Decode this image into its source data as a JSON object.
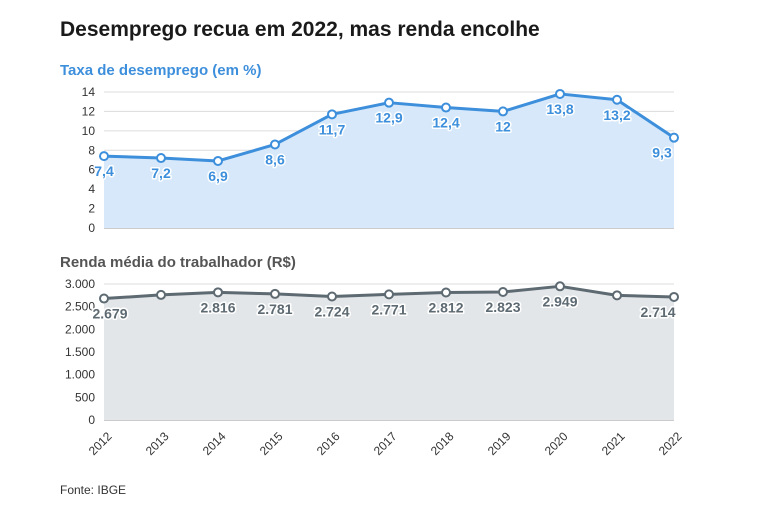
{
  "title": "Desemprego recua em 2022, mas renda encolhe",
  "source": "Fonte: IBGE",
  "colors": {
    "unemployment": "#3d8fdc",
    "unemployment_fill": "#d6e8fa",
    "income": "#5e6a72",
    "income_fill": "#e3e6e8"
  },
  "chart_data": [
    {
      "type": "area",
      "title": "Taxa de desemprego (em %)",
      "x": [
        "2012",
        "2013",
        "2014",
        "2015",
        "2016",
        "2017",
        "2018",
        "2019",
        "2020",
        "2021",
        "2022"
      ],
      "values": [
        7.4,
        7.2,
        6.9,
        8.6,
        11.7,
        12.9,
        12.4,
        12,
        13.8,
        13.2,
        9.3
      ],
      "labels": [
        "7,4",
        "7,2",
        "6,9",
        "8,6",
        "11,7",
        "12,9",
        "12,4",
        "12",
        "13,8",
        "13,2",
        "9,3"
      ],
      "yticks": [
        0,
        2,
        4,
        6,
        8,
        10,
        12,
        14
      ],
      "ytick_labels": [
        "0",
        "2",
        "4",
        "6",
        "8",
        "10",
        "12",
        "14"
      ],
      "ylim": [
        0,
        14
      ],
      "grid": true
    },
    {
      "type": "area",
      "title": "Renda média do trabalhador (R$)",
      "x": [
        "2012",
        "2013",
        "2014",
        "2015",
        "2016",
        "2017",
        "2018",
        "2019",
        "2020",
        "2021",
        "2022"
      ],
      "values": [
        2679,
        2759,
        2816,
        2781,
        2724,
        2771,
        2812,
        2823,
        2949,
        2750,
        2714
      ],
      "labels": [
        "2.679",
        "",
        "2.816",
        "2.781",
        "2.724",
        "2.771",
        "2.812",
        "2.823",
        "2.949",
        "",
        "2.714"
      ],
      "yticks": [
        0,
        500,
        1000,
        1500,
        2000,
        2500,
        3000
      ],
      "ytick_labels": [
        "0",
        "500",
        "1.000",
        "1.500",
        "2.000",
        "2.500",
        "3.000"
      ],
      "ylim": [
        0,
        3000
      ],
      "grid": true
    }
  ]
}
